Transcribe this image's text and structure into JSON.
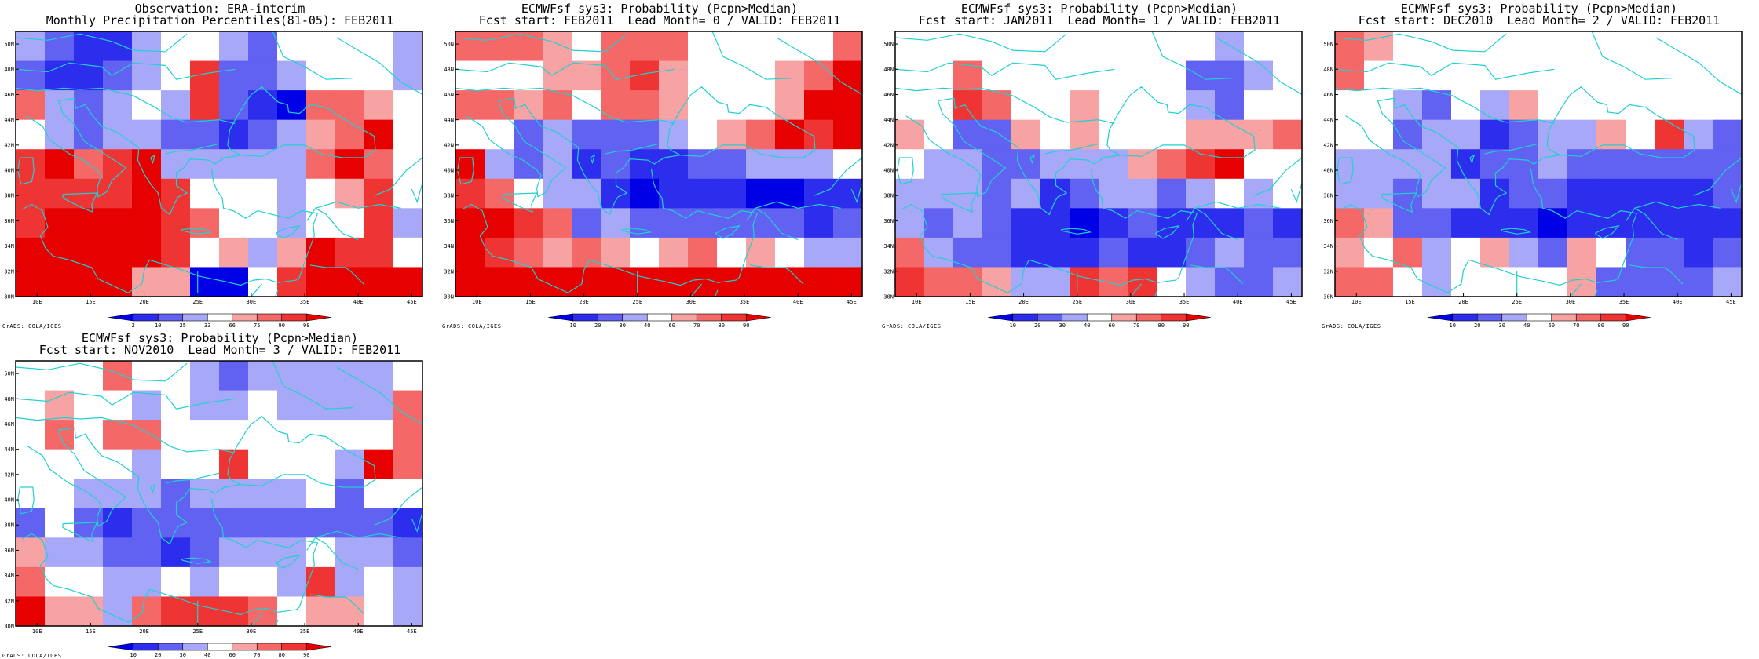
{
  "panels": [
    {
      "title1": "Observation: ERA-interim",
      "title2": "Monthly Precipitation Percentiles(81-05): FEB2011",
      "kind": "pct"
    },
    {
      "title1": "ECMWFsf sys3: Probability (Pcpn>Median)",
      "title2": "Fcst start: FEB2011  Lead Month= 0 / VALID: FEB2011",
      "kind": "prob"
    },
    {
      "title1": "ECMWFsf sys3: Probability (Pcpn>Median)",
      "title2": "Fcst start: JAN2011  Lead Month= 1 / VALID: FEB2011",
      "kind": "prob"
    },
    {
      "title1": "ECMWFsf sys3: Probability (Pcpn>Median)",
      "title2": "Fcst start: DEC2010  Lead Month= 2 / VALID: FEB2011",
      "kind": "prob"
    },
    {
      "title1": "ECMWFsf sys3: Probability (Pcpn>Median)",
      "title2": "Fcst start: NOV2010  Lead Month= 3 / VALID: FEB2011",
      "kind": "prob"
    }
  ],
  "grads_label": "GrADS: COLA/IGES",
  "lat_labels": [
    "50N",
    "48N",
    "46N",
    "44N",
    "42N",
    "40N",
    "38N",
    "36N",
    "34N",
    "32N",
    "30N"
  ],
  "lon_labels": [
    "10E",
    "15E",
    "20E",
    "25E",
    "30E",
    "35E",
    "40E",
    "45E"
  ],
  "colorbar": {
    "pct_labels": [
      "2",
      "10",
      "25",
      "33",
      "66",
      "75",
      "90",
      "98"
    ],
    "prob_labels": [
      "10",
      "20",
      "30",
      "40",
      "60",
      "70",
      "80",
      "90"
    ],
    "colors": [
      "#0000e6",
      "#2d2dee",
      "#6161f2",
      "#a8a8f8",
      "#ffffff",
      "#f7a3a3",
      "#f56868",
      "#ef3434",
      "#e60000"
    ]
  },
  "chart_data": {
    "type": "heatmap",
    "x_range": [
      8,
      46
    ],
    "y_range": [
      30,
      51
    ],
    "grid": "9 rows x 14 cols of 2.5 deg cells (lat 30-51N, lon 8-46E)",
    "category_index_meaning": "0=lowest class (deep blue) ... 4=neutral (white) ... 8=highest class (deep red)",
    "maps": [
      [
        [
          3,
          2,
          1,
          1,
          3,
          4,
          4,
          3,
          2,
          4,
          4,
          4,
          4,
          3
        ],
        [
          2,
          1,
          1,
          2,
          3,
          4,
          7,
          2,
          2,
          3,
          4,
          4,
          4,
          3
        ],
        [
          6,
          3,
          2,
          3,
          4,
          3,
          7,
          2,
          1,
          0,
          6,
          6,
          5,
          4
        ],
        [
          4,
          3,
          2,
          3,
          3,
          2,
          2,
          1,
          2,
          3,
          5,
          6,
          8,
          4
        ],
        [
          7,
          8,
          6,
          7,
          8,
          3,
          3,
          3,
          3,
          3,
          6,
          8,
          6,
          4
        ],
        [
          7,
          7,
          7,
          7,
          8,
          7,
          4,
          4,
          4,
          3,
          4,
          5,
          7,
          4
        ],
        [
          7,
          8,
          8,
          8,
          8,
          7,
          6,
          4,
          4,
          3,
          4,
          4,
          7,
          3
        ],
        [
          8,
          8,
          8,
          8,
          8,
          7,
          4,
          5,
          3,
          5,
          8,
          7,
          7,
          4
        ],
        [
          8,
          8,
          8,
          8,
          5,
          5,
          0,
          0,
          4,
          7,
          8,
          8,
          8,
          8
        ]
      ],
      [
        [
          6,
          6,
          6,
          5,
          4,
          6,
          6,
          6,
          4,
          4,
          4,
          4,
          4,
          6
        ],
        [
          4,
          4,
          4,
          5,
          5,
          6,
          7,
          5,
          4,
          4,
          4,
          5,
          6,
          8
        ],
        [
          6,
          6,
          5,
          6,
          4,
          6,
          6,
          5,
          4,
          4,
          4,
          5,
          8,
          8
        ],
        [
          4,
          4,
          2,
          3,
          2,
          2,
          2,
          3,
          4,
          5,
          6,
          8,
          7,
          8
        ],
        [
          8,
          3,
          2,
          3,
          1,
          2,
          1,
          1,
          2,
          2,
          3,
          3,
          3,
          4
        ],
        [
          7,
          6,
          4,
          3,
          3,
          1,
          0,
          1,
          1,
          1,
          0,
          0,
          1,
          1
        ],
        [
          8,
          8,
          7,
          6,
          2,
          3,
          2,
          2,
          2,
          2,
          2,
          2,
          1,
          2
        ],
        [
          8,
          7,
          6,
          5,
          6,
          5,
          4,
          5,
          6,
          4,
          5,
          4,
          3,
          3
        ],
        [
          8,
          8,
          8,
          8,
          8,
          8,
          8,
          8,
          8,
          8,
          8,
          8,
          8,
          8
        ]
      ],
      [
        [
          4,
          4,
          4,
          4,
          4,
          4,
          4,
          4,
          4,
          4,
          4,
          3,
          4,
          4
        ],
        [
          4,
          4,
          6,
          4,
          4,
          4,
          4,
          4,
          4,
          4,
          2,
          2,
          3,
          4
        ],
        [
          4,
          4,
          7,
          6,
          4,
          4,
          5,
          4,
          4,
          4,
          3,
          2,
          4,
          4
        ],
        [
          5,
          4,
          2,
          2,
          5,
          4,
          5,
          4,
          4,
          4,
          5,
          5,
          5,
          6
        ],
        [
          4,
          3,
          3,
          2,
          2,
          3,
          3,
          3,
          5,
          6,
          7,
          8,
          4,
          4
        ],
        [
          3,
          3,
          3,
          2,
          3,
          1,
          2,
          3,
          3,
          2,
          3,
          4,
          3,
          4
        ],
        [
          3,
          2,
          3,
          2,
          1,
          1,
          0,
          1,
          2,
          1,
          1,
          1,
          2,
          1
        ],
        [
          6,
          3,
          2,
          2,
          1,
          1,
          1,
          2,
          1,
          1,
          2,
          3,
          2,
          2
        ],
        [
          7,
          6,
          6,
          5,
          3,
          3,
          7,
          6,
          7,
          4,
          3,
          2,
          2,
          3
        ]
      ],
      [
        [
          6,
          5,
          4,
          4,
          4,
          4,
          4,
          4,
          4,
          4,
          4,
          4,
          4,
          4
        ],
        [
          6,
          4,
          4,
          4,
          4,
          4,
          4,
          4,
          4,
          4,
          4,
          4,
          4,
          4
        ],
        [
          4,
          4,
          3,
          2,
          4,
          3,
          5,
          4,
          4,
          4,
          4,
          4,
          4,
          4
        ],
        [
          4,
          4,
          2,
          3,
          3,
          1,
          2,
          3,
          3,
          5,
          4,
          7,
          3,
          2
        ],
        [
          3,
          3,
          3,
          3,
          1,
          2,
          2,
          3,
          2,
          2,
          2,
          2,
          2,
          2
        ],
        [
          3,
          3,
          2,
          3,
          3,
          1,
          2,
          2,
          1,
          1,
          1,
          1,
          1,
          2
        ],
        [
          6,
          5,
          2,
          2,
          1,
          1,
          1,
          0,
          1,
          1,
          1,
          1,
          1,
          1
        ],
        [
          5,
          4,
          6,
          3,
          4,
          5,
          3,
          2,
          5,
          4,
          2,
          2,
          1,
          2
        ],
        [
          6,
          6,
          4,
          3,
          4,
          4,
          4,
          4,
          5,
          2,
          2,
          2,
          2,
          3
        ]
      ],
      [
        [
          4,
          4,
          4,
          6,
          4,
          4,
          3,
          2,
          3,
          3,
          3,
          3,
          3,
          4
        ],
        [
          4,
          5,
          4,
          4,
          3,
          4,
          3,
          3,
          4,
          3,
          3,
          3,
          3,
          6
        ],
        [
          4,
          6,
          4,
          6,
          6,
          4,
          4,
          4,
          4,
          4,
          4,
          4,
          4,
          6
        ],
        [
          4,
          4,
          4,
          4,
          3,
          4,
          4,
          7,
          4,
          4,
          4,
          3,
          8,
          6
        ],
        [
          4,
          4,
          3,
          3,
          3,
          2,
          3,
          3,
          3,
          3,
          4,
          2,
          4,
          4
        ],
        [
          2,
          4,
          2,
          1,
          2,
          2,
          2,
          2,
          2,
          2,
          2,
          2,
          2,
          1
        ],
        [
          5,
          3,
          3,
          2,
          2,
          1,
          2,
          3,
          3,
          3,
          4,
          3,
          3,
          2
        ],
        [
          6,
          4,
          4,
          3,
          3,
          4,
          3,
          4,
          4,
          3,
          7,
          3,
          4,
          3
        ],
        [
          8,
          5,
          5,
          3,
          6,
          7,
          7,
          7,
          6,
          4,
          5,
          5,
          4,
          3
        ]
      ]
    ]
  }
}
